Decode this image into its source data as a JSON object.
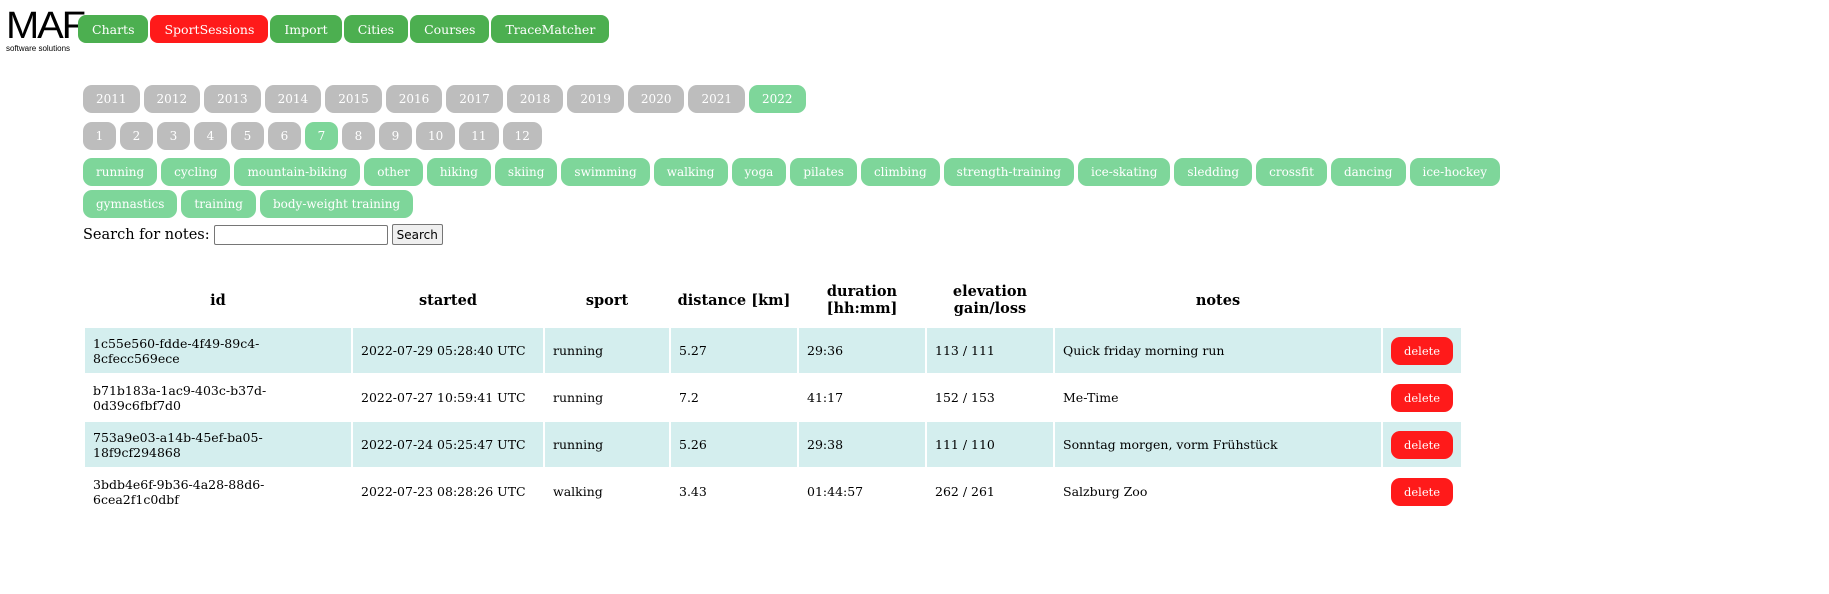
{
  "logo": {
    "main": "MAF",
    "sub": "software solutions"
  },
  "nav": [
    "Charts",
    "SportSessions",
    "Import",
    "Cities",
    "Courses",
    "TraceMatcher"
  ],
  "nav_active": "SportSessions",
  "years": [
    "2011",
    "2012",
    "2013",
    "2014",
    "2015",
    "2016",
    "2017",
    "2018",
    "2019",
    "2020",
    "2021",
    "2022"
  ],
  "selected_year": "2022",
  "months": [
    "1",
    "2",
    "3",
    "4",
    "5",
    "6",
    "7",
    "8",
    "9",
    "10",
    "11",
    "12"
  ],
  "selected_month": "7",
  "sports": [
    "running",
    "cycling",
    "mountain-biking",
    "other",
    "hiking",
    "skiing",
    "swimming",
    "walking",
    "yoga",
    "pilates",
    "climbing",
    "strength-training",
    "ice-skating",
    "sledding",
    "crossfit",
    "dancing",
    "ice-hockey",
    "gymnastics",
    "training",
    "body-weight training"
  ],
  "search": {
    "label": "Search for notes:",
    "value": "",
    "button": "Search"
  },
  "table": {
    "headers": {
      "id": "id",
      "started": "started",
      "sport": "sport",
      "distance": "distance [km]",
      "duration_l1": "duration",
      "duration_l2": "[hh:mm]",
      "elevation_l1": "elevation",
      "elevation_l2": "gain/loss",
      "notes": "notes"
    },
    "rows": [
      {
        "id": "1c55e560-fdde-4f49-89c4-8cfecc569ece",
        "started": "2022-07-29 05:28:40 UTC",
        "sport": "running",
        "distance": "5.27",
        "duration": "29:36",
        "elevation": "113 / 111",
        "notes": "Quick friday morning run",
        "action": "delete"
      },
      {
        "id": "b71b183a-1ac9-403c-b37d-0d39c6fbf7d0",
        "started": "2022-07-27 10:59:41 UTC",
        "sport": "running",
        "distance": "7.2",
        "duration": "41:17",
        "elevation": "152 / 153",
        "notes": "Me-Time",
        "action": "delete"
      },
      {
        "id": "753a9e03-a14b-45ef-ba05-18f9cf294868",
        "started": "2022-07-24 05:25:47 UTC",
        "sport": "running",
        "distance": "5.26",
        "duration": "29:38",
        "elevation": "111 / 110",
        "notes": "Sonntag morgen, vorm Frühstück",
        "action": "delete"
      },
      {
        "id": "3bdb4e6f-9b36-4a28-88d6-6cea2f1c0dbf",
        "started": "2022-07-23 08:28:26 UTC",
        "sport": "walking",
        "distance": "3.43",
        "duration": "01:44:57",
        "elevation": "262 / 261",
        "notes": "Salzburg Zoo",
        "action": "delete"
      }
    ]
  }
}
